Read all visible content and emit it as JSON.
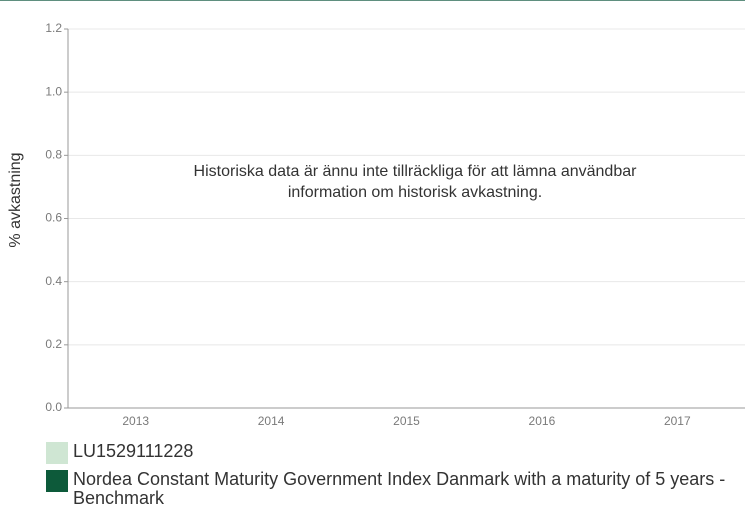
{
  "chart_data": {
    "type": "bar",
    "ylabel": "% avkastning",
    "annotation": [
      "Historiska data är ännu inte tillräckliga för att lämna användbar",
      "information om historisk avkastning."
    ],
    "categories": [
      "2013",
      "2014",
      "2015",
      "2016",
      "2017"
    ],
    "series": [
      {
        "name": "LU1529111228",
        "color": "#cfe6d3",
        "values": [
          null,
          null,
          null,
          null,
          null
        ]
      },
      {
        "name": "Nordea Constant Maturity Government Index Danmark with a maturity of 5 years - Benchmark",
        "color": "#0d5a3a",
        "values": [
          null,
          null,
          null,
          null,
          null
        ]
      }
    ],
    "ylim": [
      0,
      1.2
    ],
    "yticks": [
      {
        "value": 0,
        "label": "0.0"
      },
      0.2,
      0.4,
      0.6,
      0.8,
      {
        "value": 1,
        "label": "1.0"
      },
      1.2
    ],
    "grid": true
  }
}
